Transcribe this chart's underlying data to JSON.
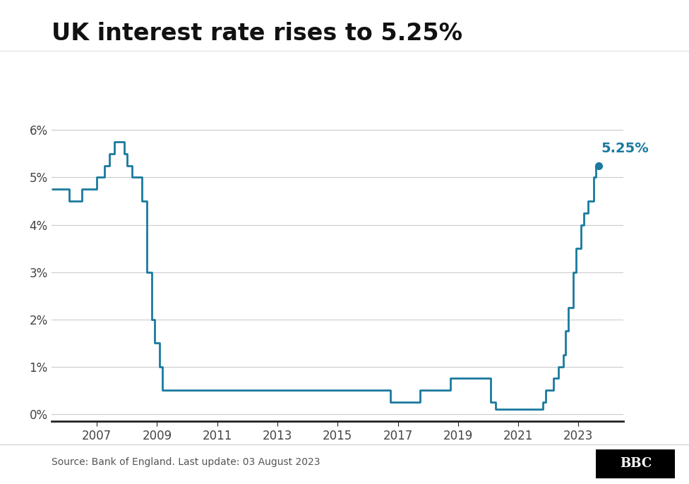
{
  "title": "UK interest rate rises to 5.25%",
  "source_text": "Source: Bank of England. Last update: 03 August 2023",
  "line_color": "#1a7a9e",
  "annotation_color": "#1a7a9e",
  "background_color": "#ffffff",
  "yticks": [
    0,
    1,
    2,
    3,
    4,
    5,
    6
  ],
  "ytick_labels": [
    "0%",
    "1%",
    "2%",
    "3%",
    "4%",
    "5%",
    "6%"
  ],
  "xticks": [
    2007,
    2009,
    2011,
    2013,
    2015,
    2017,
    2019,
    2021,
    2023
  ],
  "xlim": [
    2005.5,
    2024.5
  ],
  "ylim": [
    -0.15,
    6.5
  ],
  "title_fontsize": 24,
  "label_fontsize": 12,
  "data": [
    [
      2005.5,
      4.75
    ],
    [
      2006.08,
      4.75
    ],
    [
      2006.08,
      4.5
    ],
    [
      2006.5,
      4.5
    ],
    [
      2006.5,
      4.75
    ],
    [
      2007.0,
      4.75
    ],
    [
      2007.0,
      5.0
    ],
    [
      2007.25,
      5.0
    ],
    [
      2007.25,
      5.25
    ],
    [
      2007.42,
      5.25
    ],
    [
      2007.42,
      5.5
    ],
    [
      2007.58,
      5.5
    ],
    [
      2007.58,
      5.75
    ],
    [
      2007.92,
      5.75
    ],
    [
      2007.92,
      5.5
    ],
    [
      2008.0,
      5.5
    ],
    [
      2008.0,
      5.25
    ],
    [
      2008.17,
      5.25
    ],
    [
      2008.17,
      5.0
    ],
    [
      2008.5,
      5.0
    ],
    [
      2008.5,
      4.5
    ],
    [
      2008.67,
      4.5
    ],
    [
      2008.67,
      3.0
    ],
    [
      2008.83,
      3.0
    ],
    [
      2008.83,
      2.0
    ],
    [
      2008.92,
      2.0
    ],
    [
      2008.92,
      1.5
    ],
    [
      2009.08,
      1.5
    ],
    [
      2009.08,
      1.0
    ],
    [
      2009.17,
      1.0
    ],
    [
      2009.17,
      0.5
    ],
    [
      2016.75,
      0.5
    ],
    [
      2016.75,
      0.25
    ],
    [
      2017.75,
      0.25
    ],
    [
      2017.75,
      0.5
    ],
    [
      2018.75,
      0.5
    ],
    [
      2018.75,
      0.75
    ],
    [
      2019.75,
      0.75
    ],
    [
      2019.75,
      0.75
    ],
    [
      2020.08,
      0.75
    ],
    [
      2020.08,
      0.25
    ],
    [
      2020.25,
      0.25
    ],
    [
      2020.25,
      0.1
    ],
    [
      2021.83,
      0.1
    ],
    [
      2021.83,
      0.25
    ],
    [
      2021.92,
      0.25
    ],
    [
      2021.92,
      0.5
    ],
    [
      2022.17,
      0.5
    ],
    [
      2022.17,
      0.75
    ],
    [
      2022.33,
      0.75
    ],
    [
      2022.33,
      1.0
    ],
    [
      2022.5,
      1.0
    ],
    [
      2022.5,
      1.25
    ],
    [
      2022.58,
      1.25
    ],
    [
      2022.58,
      1.75
    ],
    [
      2022.67,
      1.75
    ],
    [
      2022.67,
      2.25
    ],
    [
      2022.75,
      2.25
    ],
    [
      2022.83,
      2.25
    ],
    [
      2022.83,
      3.0
    ],
    [
      2022.92,
      3.0
    ],
    [
      2022.92,
      3.5
    ],
    [
      2023.0,
      3.5
    ],
    [
      2023.08,
      3.5
    ],
    [
      2023.08,
      4.0
    ],
    [
      2023.17,
      4.0
    ],
    [
      2023.17,
      4.25
    ],
    [
      2023.33,
      4.25
    ],
    [
      2023.33,
      4.5
    ],
    [
      2023.5,
      4.5
    ],
    [
      2023.5,
      5.0
    ],
    [
      2023.58,
      5.0
    ],
    [
      2023.58,
      5.25
    ],
    [
      2023.67,
      5.25
    ]
  ]
}
